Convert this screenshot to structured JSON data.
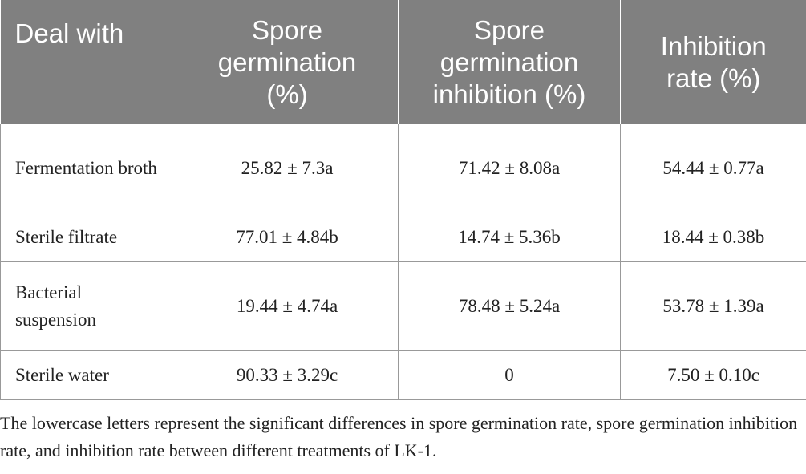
{
  "table": {
    "header": [
      "Deal with",
      "Spore germination (%)",
      "Spore germination inhibition (%)",
      "Inhibition rate (%)"
    ],
    "rows": [
      [
        "Fermentation broth",
        "25.82 ± 7.3a",
        "71.42 ± 8.08a",
        "54.44 ± 0.77a"
      ],
      [
        "Sterile filtrate",
        "77.01 ± 4.84b",
        "14.74 ± 5.36b",
        "18.44 ± 0.38b"
      ],
      [
        "Bacterial suspension",
        "19.44 ± 4.74a",
        "78.48 ± 5.24a",
        "53.78 ± 1.39a"
      ],
      [
        "Sterile water",
        "90.33 ± 3.29c",
        "0",
        "7.50 ± 0.10c"
      ]
    ]
  },
  "footnote": "The lowercase letters represent the significant differences in spore germination rate, spore germination inhibition rate, and inhibition rate between different treatments of LK-1."
}
